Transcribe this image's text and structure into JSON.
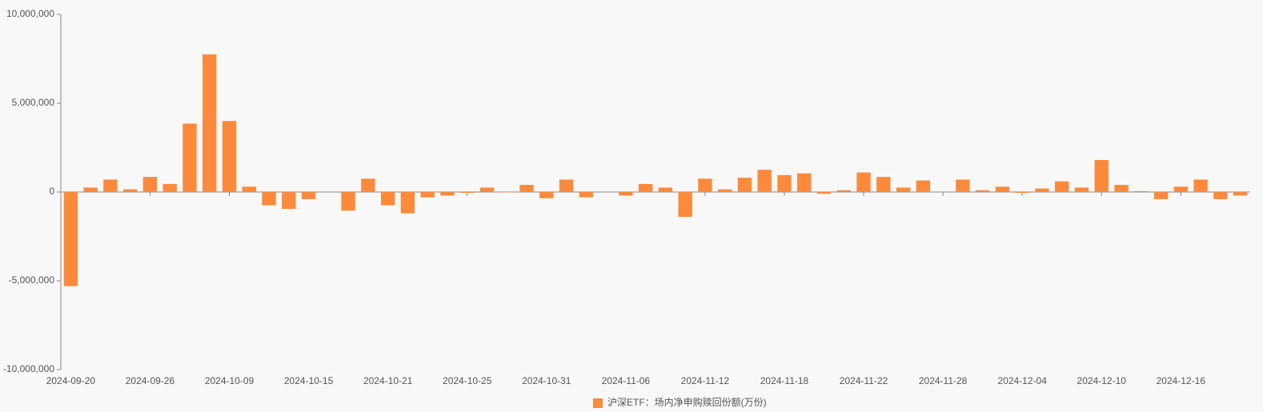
{
  "chart_data": {
    "type": "bar",
    "categories": [
      "2024-09-20",
      null,
      null,
      null,
      "2024-09-26",
      null,
      null,
      null,
      "2024-10-09",
      null,
      null,
      null,
      "2024-10-15",
      null,
      null,
      null,
      "2024-10-21",
      null,
      null,
      null,
      "2024-10-25",
      null,
      null,
      null,
      "2024-10-31",
      null,
      null,
      null,
      "2024-11-06",
      null,
      null,
      null,
      "2024-11-12",
      null,
      null,
      null,
      "2024-11-18",
      null,
      null,
      null,
      "2024-11-22",
      null,
      null,
      null,
      "2024-11-28",
      null,
      null,
      null,
      "2024-12-04",
      null,
      null,
      null,
      "2024-12-10",
      null,
      null,
      null,
      "2024-12-16",
      null,
      null,
      null
    ],
    "series": [
      {
        "name": "沪深ETF：场内净申购赎回份额(万份)",
        "color": "#fd8a3a",
        "values": [
          -5300000,
          250000,
          700000,
          150000,
          850000,
          450000,
          3850000,
          7750000,
          4000000,
          300000,
          -750000,
          -950000,
          -400000,
          0,
          -1050000,
          750000,
          -750000,
          -1200000,
          -300000,
          -200000,
          -50000,
          250000,
          -20000,
          400000,
          -350000,
          700000,
          -300000,
          0,
          -200000,
          450000,
          250000,
          -1400000,
          750000,
          150000,
          800000,
          1250000,
          950000,
          1050000,
          -100000,
          100000,
          1100000,
          850000,
          250000,
          650000,
          0,
          700000,
          100000,
          300000,
          -50000,
          200000,
          600000,
          250000,
          1800000,
          400000,
          50000,
          -400000,
          300000,
          700000,
          -400000,
          -200000
        ]
      }
    ],
    "ylim": [
      -10000000,
      10000000
    ],
    "yticks": [
      {
        "value": -10000000,
        "label": "-10,000,000"
      },
      {
        "value": -5000000,
        "label": "-5,000,000"
      },
      0,
      {
        "value": 5000000,
        "label": "5,000,000"
      },
      {
        "value": 10000000,
        "label": "10,000,000"
      }
    ],
    "legend": "bottom"
  }
}
